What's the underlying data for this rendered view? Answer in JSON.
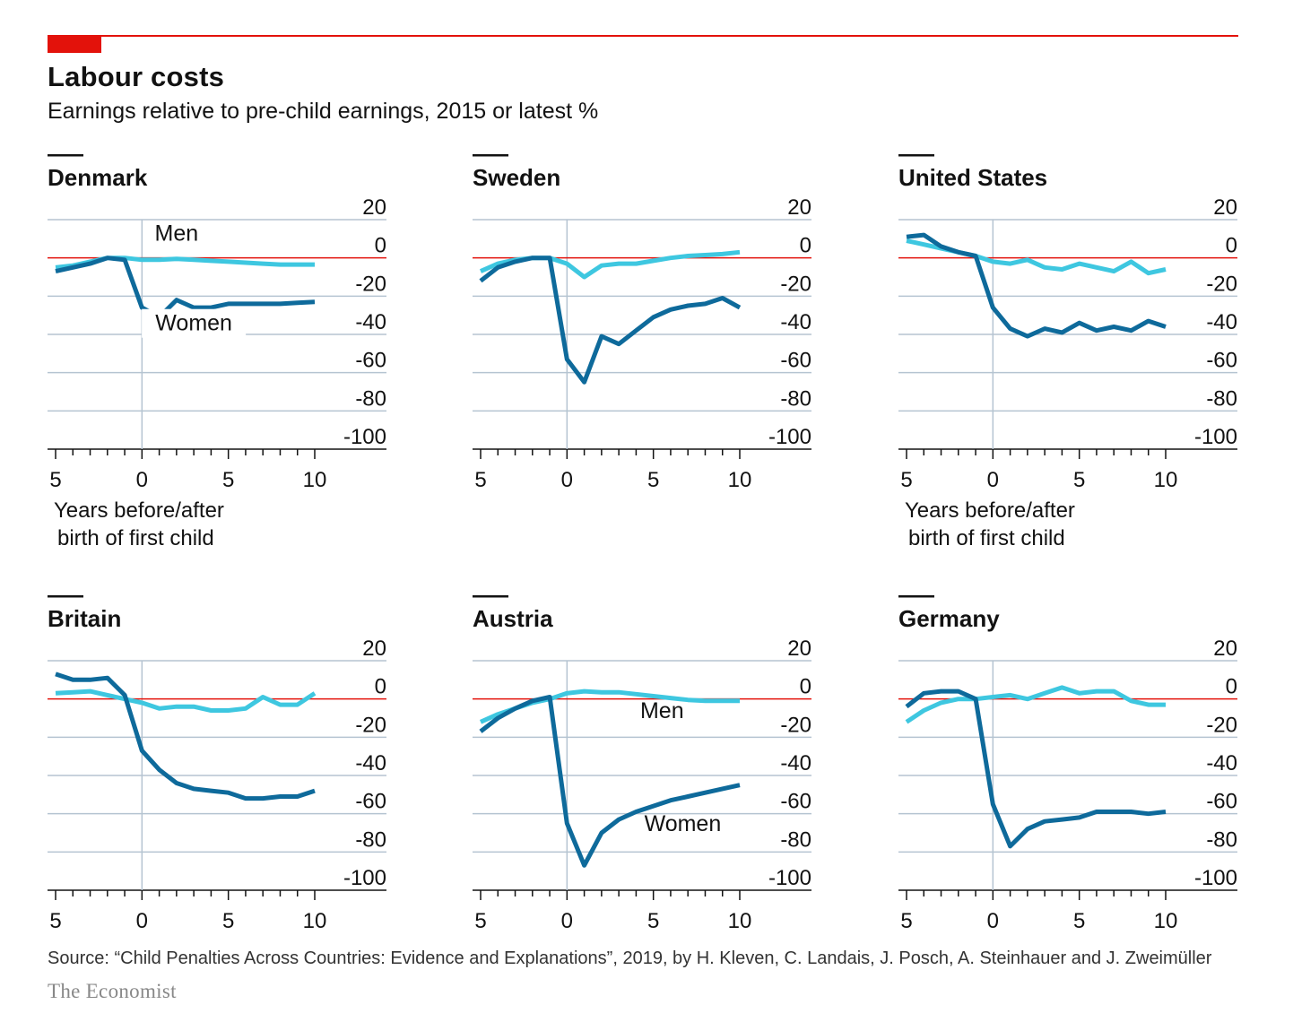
{
  "header": {
    "title": "Labour costs",
    "subtitle": "Earnings relative to pre-child earnings, 2015 or latest %"
  },
  "footer": {
    "source": "Source: “Child Penalties Across Countries: Evidence and Explanations”, 2019, by H. Kleven, C. Landais, J. Posch, A. Steinhauer and J. Zweimüller",
    "brand": "The Economist"
  },
  "colors": {
    "men": "#3ec7e0",
    "women": "#0e6a9b",
    "zero_line": "#e3120b",
    "grid": "#b5c4d1",
    "accent": "#e3120b"
  },
  "chart_data": [
    {
      "type": "line",
      "title": "Denmark",
      "xlabel": "Years before/after birth of first child",
      "x_tick_labels": [
        "5",
        "0",
        "5",
        "10"
      ],
      "x_ticks": [
        -5,
        0,
        5,
        10
      ],
      "y_ticks": [
        20,
        0,
        -20,
        -40,
        -60,
        -80,
        -100
      ],
      "ylim": [
        -100,
        20
      ],
      "xlim": [
        -5,
        10
      ],
      "x": [
        -5,
        -4,
        -3,
        -2,
        -1,
        0,
        1,
        2,
        3,
        4,
        5,
        6,
        7,
        8,
        9,
        10
      ],
      "series": [
        {
          "name": "Men",
          "values": [
            -5,
            -4,
            -2,
            0,
            0,
            -1,
            -1,
            -0.5,
            -1,
            -1.5,
            -2,
            -2.5,
            -3,
            -3.5,
            -3.5,
            -3.5
          ]
        },
        {
          "name": "Women",
          "values": [
            -7,
            -5,
            -3,
            0,
            -1,
            -26,
            -31,
            -22,
            -26,
            -26,
            -24,
            -24,
            -24,
            -24,
            -23.5,
            -23
          ]
        }
      ],
      "annotations": [
        {
          "text": "Men"
        },
        {
          "text": "Women"
        }
      ]
    },
    {
      "type": "line",
      "title": "Sweden",
      "x_tick_labels": [
        "5",
        "0",
        "5",
        "10"
      ],
      "x_ticks": [
        -5,
        0,
        5,
        10
      ],
      "y_ticks": [
        20,
        0,
        -20,
        -40,
        -60,
        -80,
        -100
      ],
      "ylim": [
        -100,
        20
      ],
      "xlim": [
        -5,
        10
      ],
      "x": [
        -5,
        -4,
        -3,
        -2,
        -1,
        0,
        1,
        2,
        3,
        4,
        5,
        6,
        7,
        8,
        9,
        10
      ],
      "series": [
        {
          "name": "Men",
          "values": [
            -7,
            -3,
            -1,
            0,
            0,
            -3,
            -10,
            -4,
            -3,
            -3,
            -1.5,
            0,
            1,
            1.5,
            2,
            3
          ]
        },
        {
          "name": "Women",
          "values": [
            -12,
            -5,
            -2,
            0,
            0,
            -53,
            -65,
            -41,
            -45,
            -38,
            -31,
            -27,
            -25,
            -24,
            -21,
            -26
          ]
        }
      ]
    },
    {
      "type": "line",
      "title": "United States",
      "xlabel": "Years before/after birth of first child",
      "x_tick_labels": [
        "5",
        "0",
        "5",
        "10"
      ],
      "x_ticks": [
        -5,
        0,
        5,
        10
      ],
      "y_ticks": [
        20,
        0,
        -20,
        -40,
        -60,
        -80,
        -100
      ],
      "ylim": [
        -100,
        20
      ],
      "xlim": [
        -5,
        10
      ],
      "x": [
        -5,
        -4,
        -3,
        -2,
        -1,
        0,
        1,
        2,
        3,
        4,
        5,
        6,
        7,
        8,
        9,
        10
      ],
      "series": [
        {
          "name": "Men",
          "values": [
            9,
            7,
            5,
            3,
            1,
            -2,
            -3,
            -1,
            -5,
            -6,
            -3,
            -5,
            -7,
            -2,
            -8,
            -6
          ]
        },
        {
          "name": "Women",
          "values": [
            11,
            12,
            6,
            3,
            1,
            -26,
            -37,
            -41,
            -37,
            -39,
            -34,
            -38,
            -36,
            -38,
            -33,
            -36
          ]
        }
      ]
    },
    {
      "type": "line",
      "title": "Britain",
      "x_tick_labels": [
        "5",
        "0",
        "5",
        "10"
      ],
      "x_ticks": [
        -5,
        0,
        5,
        10
      ],
      "y_ticks": [
        20,
        0,
        -20,
        -40,
        -60,
        -80,
        -100
      ],
      "ylim": [
        -100,
        20
      ],
      "xlim": [
        -5,
        10
      ],
      "x": [
        -5,
        -4,
        -3,
        -2,
        -1,
        0,
        1,
        2,
        3,
        4,
        5,
        6,
        7,
        8,
        9,
        10
      ],
      "series": [
        {
          "name": "Men",
          "values": [
            3,
            3.5,
            4,
            2,
            0,
            -2,
            -5,
            -4,
            -4,
            -6,
            -6,
            -5,
            1,
            -3,
            -3,
            3
          ]
        },
        {
          "name": "Women",
          "values": [
            13,
            10,
            10,
            11,
            2,
            -27,
            -37,
            -44,
            -47,
            -48,
            -49,
            -52,
            -52,
            -51,
            -51,
            -48
          ]
        }
      ]
    },
    {
      "type": "line",
      "title": "Austria",
      "x_tick_labels": [
        "5",
        "0",
        "5",
        "10"
      ],
      "x_ticks": [
        -5,
        0,
        5,
        10
      ],
      "y_ticks": [
        20,
        0,
        -20,
        -40,
        -60,
        -80,
        -100
      ],
      "ylim": [
        -100,
        20
      ],
      "xlim": [
        -5,
        10
      ],
      "x": [
        -5,
        -4,
        -3,
        -2,
        -1,
        0,
        1,
        2,
        3,
        4,
        5,
        6,
        7,
        8,
        9,
        10
      ],
      "series": [
        {
          "name": "Men",
          "values": [
            -12,
            -8,
            -5,
            -2,
            0,
            3,
            4,
            3.5,
            3.5,
            2.5,
            1.5,
            0.5,
            -0.5,
            -1,
            -1,
            -1
          ]
        },
        {
          "name": "Women",
          "values": [
            -17,
            -10,
            -5,
            -1,
            1,
            -65,
            -87,
            -70,
            -63,
            -59,
            -56,
            -53,
            -51,
            -49,
            -47,
            -45
          ]
        }
      ],
      "annotations": [
        {
          "text": "Men"
        },
        {
          "text": "Women"
        }
      ]
    },
    {
      "type": "line",
      "title": "Germany",
      "x_tick_labels": [
        "5",
        "0",
        "5",
        "10"
      ],
      "x_ticks": [
        -5,
        0,
        5,
        10
      ],
      "y_ticks": [
        20,
        0,
        -20,
        -40,
        -60,
        -80,
        -100
      ],
      "ylim": [
        -100,
        20
      ],
      "xlim": [
        -5,
        10
      ],
      "x": [
        -5,
        -4,
        -3,
        -2,
        -1,
        0,
        1,
        2,
        3,
        4,
        5,
        6,
        7,
        8,
        9,
        10
      ],
      "series": [
        {
          "name": "Men",
          "values": [
            -12,
            -6,
            -2,
            0,
            0,
            1,
            2,
            0,
            3,
            6,
            3,
            4,
            4,
            -1,
            -3,
            -3
          ]
        },
        {
          "name": "Women",
          "values": [
            -4,
            3,
            4,
            4,
            0,
            -55,
            -77,
            -68,
            -64,
            -63,
            -62,
            -59,
            -59,
            -59,
            -60,
            -59
          ]
        }
      ]
    }
  ]
}
